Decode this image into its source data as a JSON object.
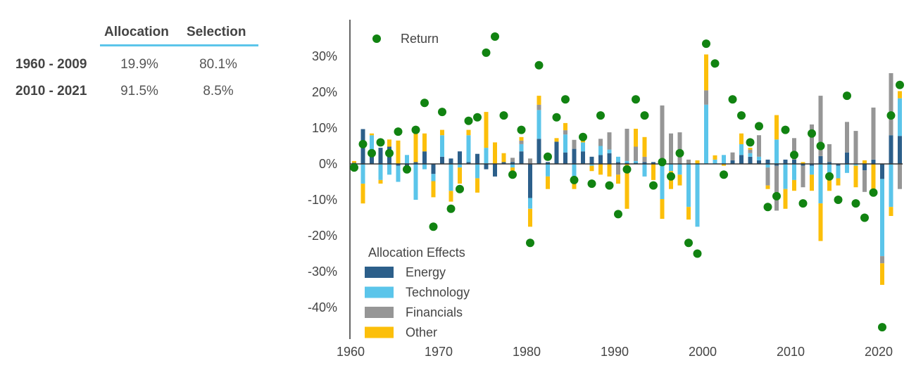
{
  "table": {
    "headers": [
      "Allocation",
      "Selection"
    ],
    "rows": [
      {
        "period": "1960 - 2009",
        "allocation": "19.9%",
        "selection": "80.1%"
      },
      {
        "period": "2010 - 2021",
        "allocation": "91.5%",
        "selection": "8.5%"
      }
    ]
  },
  "chart_data": {
    "type": "bar",
    "stacked": true,
    "x_ticks": [
      "1960",
      "1970",
      "1980",
      "1990",
      "2000",
      "2010",
      "2020"
    ],
    "y_ticks": [
      "30%",
      "20%",
      "10%",
      "0%",
      "-10%",
      "-20%",
      "-30%",
      "-40%"
    ],
    "ylim": [
      -0.5,
      0.4
    ],
    "xlim": [
      1960,
      2022
    ],
    "legend_title": "Allocation Effects",
    "colors": {
      "Energy": "#2c5f8a",
      "Technology": "#5bc5ea",
      "Financials": "#969696",
      "Other": "#fcbf0a",
      "Return": "#118311"
    },
    "scatter_series": {
      "name": "Return",
      "x": [
        1960,
        1961,
        1962,
        1963,
        1964,
        1965,
        1966,
        1967,
        1968,
        1969,
        1970,
        1971,
        1972,
        1973,
        1974,
        1975,
        1976,
        1977,
        1978,
        1979,
        1980,
        1981,
        1982,
        1983,
        1984,
        1985,
        1986,
        1987,
        1988,
        1989,
        1990,
        1991,
        1992,
        1993,
        1994,
        1995,
        1996,
        1997,
        1998,
        1999,
        2000,
        2001,
        2002,
        2003,
        2004,
        2005,
        2006,
        2007,
        2008,
        2009,
        2010,
        2011,
        2012,
        2013,
        2014,
        2015,
        2016,
        2017,
        2018,
        2019,
        2020,
        2021,
        2022
      ],
      "values": [
        -0.01,
        0.055,
        0.03,
        0.06,
        0.03,
        0.09,
        -0.015,
        0.095,
        0.17,
        -0.175,
        0.145,
        -0.125,
        -0.07,
        0.12,
        0.13,
        0.31,
        0.355,
        0.135,
        -0.03,
        0.095,
        -0.22,
        0.275,
        0.02,
        0.13,
        0.18,
        -0.045,
        0.075,
        -0.055,
        0.135,
        -0.06,
        -0.14,
        -0.015,
        0.18,
        0.135,
        -0.06,
        0.005,
        -0.035,
        0.03,
        -0.22,
        -0.25,
        0.335,
        0.28,
        -0.03,
        0.18,
        0.135,
        0.06,
        0.105,
        -0.12,
        -0.09,
        0.095,
        0.025,
        -0.11,
        0.085,
        0.05,
        -0.035,
        -0.1,
        0.19,
        -0.11,
        -0.15,
        -0.08,
        -0.455,
        0.135,
        0.22
      ]
    },
    "series": [
      {
        "name": "Energy",
        "x": [
          1960,
          1961,
          1962,
          1963,
          1964,
          1965,
          1966,
          1967,
          1968,
          1969,
          1970,
          1971,
          1972,
          1973,
          1974,
          1975,
          1976,
          1977,
          1978,
          1979,
          1980,
          1981,
          1982,
          1983,
          1984,
          1985,
          1986,
          1987,
          1988,
          1989,
          1990,
          1991,
          1992,
          1993,
          1994,
          1995,
          1996,
          1997,
          1998,
          1999,
          2000,
          2001,
          2002,
          2003,
          2004,
          2005,
          2006,
          2007,
          2008,
          2009,
          2010,
          2011,
          2012,
          2013,
          2014,
          2015,
          2016,
          2017,
          2018,
          2019,
          2020,
          2021,
          2022
        ],
        "values": [
          0.003,
          0.097,
          0.03,
          0.045,
          0.048,
          -0.005,
          -0.005,
          0.005,
          0.035,
          -0.028,
          0.02,
          0.015,
          0.035,
          0.005,
          0.028,
          -0.015,
          -0.035,
          0.005,
          0.005,
          0.035,
          -0.095,
          0.07,
          0.005,
          0.062,
          0.032,
          0.042,
          0.035,
          0.02,
          0.025,
          0.03,
          0.005,
          0.003,
          0.003,
          0.005,
          0.005,
          -0.003,
          0.0,
          0.0,
          0.0,
          0.0,
          0.0,
          0.0,
          0.0,
          0.01,
          0.025,
          0.02,
          0.01,
          0.012,
          -0.005,
          0.012,
          0.012,
          -0.005,
          -0.005,
          0.022,
          0.005,
          -0.005,
          0.032,
          0.0,
          -0.018,
          0.012,
          -0.042,
          0.08,
          0.078
        ]
      },
      {
        "name": "Technology",
        "x": [
          1960,
          1961,
          1962,
          1963,
          1964,
          1965,
          1966,
          1967,
          1968,
          1969,
          1970,
          1971,
          1972,
          1973,
          1974,
          1975,
          1976,
          1977,
          1978,
          1979,
          1980,
          1981,
          1982,
          1983,
          1984,
          1985,
          1986,
          1987,
          1988,
          1989,
          1990,
          1991,
          1992,
          1993,
          1994,
          1995,
          1996,
          1997,
          1998,
          1999,
          2000,
          2001,
          2002,
          2003,
          2004,
          2005,
          2006,
          2007,
          2008,
          2009,
          2010,
          2011,
          2012,
          2013,
          2014,
          2015,
          2016,
          2017,
          2018,
          2019,
          2020,
          2021,
          2022
        ],
        "values": [
          -0.015,
          -0.055,
          0.05,
          -0.045,
          -0.03,
          -0.045,
          0.025,
          -0.1,
          -0.015,
          -0.02,
          0.06,
          -0.075,
          -0.01,
          0.075,
          -0.04,
          0.045,
          0.0,
          0.0,
          -0.01,
          0.02,
          -0.03,
          0.08,
          -0.035,
          0.0,
          0.05,
          -0.04,
          0.025,
          -0.005,
          0.025,
          0.01,
          0.015,
          0.005,
          0.005,
          -0.035,
          0.0,
          -0.095,
          -0.02,
          -0.03,
          -0.12,
          -0.175,
          0.165,
          0.012,
          0.025,
          0.0,
          0.03,
          0.01,
          0.01,
          -0.01,
          0.068,
          -0.07,
          -0.045,
          0.0,
          -0.025,
          -0.11,
          -0.04,
          -0.035,
          -0.025,
          -0.005,
          0.0,
          0.0,
          -0.215,
          -0.12,
          0.105
        ]
      },
      {
        "name": "Financials",
        "x": [
          1960,
          1961,
          1962,
          1963,
          1964,
          1965,
          1966,
          1967,
          1968,
          1969,
          1970,
          1971,
          1972,
          1973,
          1974,
          1975,
          1976,
          1977,
          1978,
          1979,
          1980,
          1981,
          1982,
          1983,
          1984,
          1985,
          1986,
          1987,
          1988,
          1989,
          1990,
          1991,
          1992,
          1993,
          1994,
          1995,
          1996,
          1997,
          1998,
          1999,
          2000,
          2001,
          2002,
          2003,
          2004,
          2005,
          2006,
          2007,
          2008,
          2009,
          2010,
          2011,
          2012,
          2013,
          2014,
          2015,
          2016,
          2017,
          2018,
          2019,
          2020,
          2021,
          2022
        ],
        "values": [
          0.0,
          0.0,
          0.0,
          0.0,
          0.0,
          0.0,
          0.0,
          0.0,
          0.0,
          0.0,
          0.0,
          0.0,
          0.0,
          0.0,
          0.0,
          0.0,
          0.0,
          0.0,
          0.012,
          0.01,
          0.015,
          0.015,
          0.0,
          0.0,
          0.012,
          0.025,
          0.0,
          0.0,
          0.02,
          0.048,
          -0.03,
          0.09,
          0.04,
          0.015,
          0.0,
          0.163,
          0.085,
          0.088,
          0.012,
          0.0,
          0.04,
          0.0,
          0.0,
          0.022,
          0.0,
          0.01,
          0.06,
          -0.05,
          -0.125,
          0.0,
          0.06,
          -0.06,
          0.11,
          0.168,
          0.05,
          0.0,
          0.085,
          0.092,
          -0.06,
          0.145,
          -0.02,
          0.173,
          -0.07
        ]
      },
      {
        "name": "Other",
        "x": [
          1960,
          1961,
          1962,
          1963,
          1964,
          1965,
          1966,
          1967,
          1968,
          1969,
          1970,
          1971,
          1972,
          1973,
          1974,
          1975,
          1976,
          1977,
          1978,
          1979,
          1980,
          1981,
          1982,
          1983,
          1984,
          1985,
          1986,
          1987,
          1988,
          1989,
          1990,
          1991,
          1992,
          1993,
          1994,
          1995,
          1996,
          1997,
          1998,
          1999,
          2000,
          2001,
          2002,
          2003,
          2004,
          2005,
          2006,
          2007,
          2008,
          2009,
          2010,
          2011,
          2012,
          2013,
          2014,
          2015,
          2016,
          2017,
          2018,
          2019,
          2020,
          2021,
          2022
        ],
        "values": [
          0.005,
          -0.055,
          0.005,
          -0.01,
          0.02,
          0.065,
          -0.01,
          0.08,
          0.05,
          -0.045,
          0.015,
          -0.03,
          -0.045,
          0.015,
          -0.04,
          0.1,
          0.06,
          0.025,
          -0.01,
          0.01,
          -0.05,
          0.025,
          -0.035,
          0.01,
          0.02,
          -0.03,
          0.005,
          -0.015,
          -0.03,
          -0.035,
          -0.025,
          -0.125,
          0.05,
          0.055,
          -0.045,
          -0.055,
          -0.05,
          -0.03,
          -0.035,
          0.01,
          0.1,
          0.012,
          -0.005,
          0.0,
          0.03,
          0.005,
          0.0,
          -0.01,
          0.068,
          -0.055,
          -0.03,
          0.005,
          -0.045,
          -0.105,
          -0.035,
          -0.02,
          0.0,
          -0.06,
          0.01,
          -0.075,
          -0.06,
          -0.025,
          0.02
        ]
      }
    ]
  }
}
